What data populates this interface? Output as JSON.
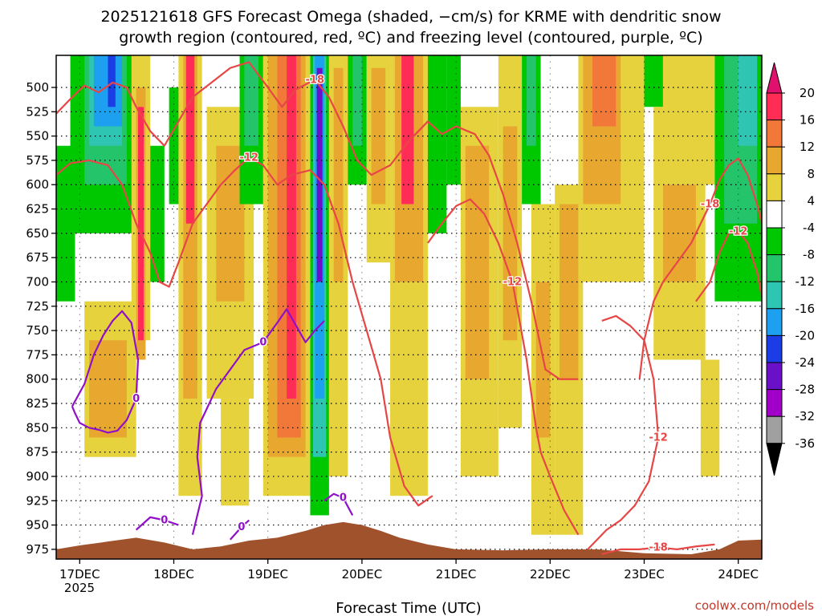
{
  "chart_data": {
    "type": "heatmap",
    "title_line1": "2025121618 GFS Forecast Omega (shaded, −cm/s) for KRME with dendritic snow",
    "title_line2": "growth region (contoured, red, ºC) and freezing level (contoured, purple, ºC)",
    "xlabel": "Forecast Time (UTC)",
    "x_ticks": [
      "17DEC",
      "18DEC",
      "19DEC",
      "20DEC",
      "21DEC",
      "22DEC",
      "23DEC",
      "24DEC"
    ],
    "x_year": "2025",
    "xlim_days": [
      16.75,
      24.25
    ],
    "y_ticks": [
      500,
      525,
      550,
      575,
      600,
      625,
      650,
      675,
      700,
      725,
      750,
      775,
      800,
      825,
      850,
      875,
      900,
      925,
      950,
      975
    ],
    "ylim": [
      467,
      985
    ],
    "colorbar_labels": [
      "20",
      "16",
      "12",
      "8",
      "4",
      "-4",
      "-8",
      "-12",
      "-16",
      "-20",
      "-24",
      "-28",
      "-32",
      "-36"
    ],
    "colorbar_colors": [
      "#ff2d55",
      "#f2783a",
      "#e8a830",
      "#e6d23c",
      "#ffffff",
      "#00c800",
      "#24c46a",
      "#2ec5b2",
      "#1ea0f0",
      "#1c3ce6",
      "#6a10c8",
      "#a000c8",
      "#a0a0a0",
      "#000000"
    ],
    "colorbar_top_color": "#e0106e",
    "omega_bands": [
      {
        "range": "4 to 8",
        "color": "#e6d23c"
      },
      {
        "range": "8 to 12",
        "color": "#e8a830"
      },
      {
        "range": "12 to 16",
        "color": "#f2783a"
      },
      {
        "range": "16 to 20",
        "color": "#ff2d55"
      },
      {
        "range": "-4 to -8",
        "color": "#00c800"
      },
      {
        "range": "-8 to -12",
        "color": "#24c46a"
      },
      {
        "range": "-12 to -16",
        "color": "#2ec5b2"
      },
      {
        "range": "-16 to -20",
        "color": "#1ea0f0"
      },
      {
        "range": "-20 to -24",
        "color": "#1c3ce6"
      },
      {
        "range": "-24 to -28",
        "color": "#6a10c8"
      }
    ],
    "dgz_contours": [
      {
        "value": -18,
        "label": "-18",
        "color": "#e64646",
        "points": [
          [
            16.75,
            527
          ],
          [
            16.9,
            512
          ],
          [
            17.05,
            498
          ],
          [
            17.2,
            505
          ],
          [
            17.35,
            495
          ],
          [
            17.5,
            500
          ],
          [
            17.6,
            520
          ],
          [
            17.75,
            545
          ],
          [
            17.9,
            560
          ],
          [
            18.05,
            535
          ],
          [
            18.2,
            510
          ],
          [
            18.4,
            495
          ],
          [
            18.6,
            480
          ],
          [
            18.8,
            474
          ],
          [
            19.0,
            500
          ],
          [
            19.15,
            520
          ],
          [
            19.3,
            502
          ],
          [
            19.5,
            492
          ],
          [
            19.65,
            510
          ],
          [
            19.8,
            540
          ],
          [
            19.95,
            575
          ],
          [
            20.1,
            590
          ],
          [
            20.3,
            580
          ],
          [
            20.5,
            555
          ],
          [
            20.7,
            535
          ],
          [
            20.85,
            548
          ],
          [
            21.0,
            540
          ],
          [
            21.2,
            548
          ],
          [
            21.35,
            570
          ],
          [
            21.5,
            610
          ],
          [
            21.65,
            660
          ],
          [
            21.8,
            720
          ],
          [
            21.95,
            790
          ],
          [
            22.1,
            800
          ],
          [
            22.3,
            800
          ]
        ]
      },
      {
        "value": -12,
        "label": "-12",
        "color": "#e64646",
        "points": [
          [
            16.75,
            590
          ],
          [
            16.9,
            578
          ],
          [
            17.1,
            575
          ],
          [
            17.3,
            580
          ],
          [
            17.45,
            600
          ],
          [
            17.6,
            640
          ],
          [
            17.75,
            670
          ],
          [
            17.85,
            700
          ],
          [
            17.95,
            705
          ],
          [
            18.05,
            680
          ],
          [
            18.2,
            640
          ],
          [
            18.35,
            620
          ],
          [
            18.5,
            600
          ],
          [
            18.65,
            585
          ],
          [
            18.8,
            572
          ],
          [
            18.95,
            580
          ],
          [
            19.1,
            600
          ],
          [
            19.25,
            590
          ],
          [
            19.45,
            585
          ],
          [
            19.6,
            600
          ],
          [
            19.75,
            640
          ],
          [
            19.9,
            700
          ],
          [
            20.05,
            750
          ],
          [
            20.2,
            800
          ],
          [
            20.3,
            860
          ],
          [
            20.45,
            910
          ],
          [
            20.6,
            930
          ],
          [
            20.75,
            920
          ]
        ]
      },
      {
        "value": -12,
        "label": "-12",
        "color": "#e64646",
        "points": [
          [
            20.7,
            660
          ],
          [
            20.85,
            640
          ],
          [
            21.0,
            622
          ],
          [
            21.15,
            615
          ],
          [
            21.3,
            630
          ],
          [
            21.45,
            660
          ],
          [
            21.6,
            700
          ],
          [
            21.75,
            780
          ],
          [
            21.85,
            850
          ],
          [
            21.9,
            875
          ],
          [
            22.0,
            900
          ],
          [
            22.15,
            935
          ],
          [
            22.3,
            960
          ]
        ]
      },
      {
        "value": -12,
        "label": "-12",
        "color": "#e64646",
        "points": [
          [
            22.4,
            975
          ],
          [
            22.6,
            955
          ],
          [
            22.75,
            945
          ],
          [
            22.9,
            930
          ],
          [
            23.05,
            905
          ],
          [
            23.15,
            860
          ],
          [
            23.1,
            800
          ],
          [
            23.0,
            760
          ],
          [
            22.85,
            745
          ],
          [
            22.7,
            735
          ],
          [
            22.55,
            740
          ]
        ]
      },
      {
        "value": -18,
        "label": "-18",
        "color": "#e64646",
        "points": [
          [
            22.55,
            980
          ],
          [
            22.75,
            975
          ],
          [
            22.95,
            975
          ],
          [
            23.15,
            973
          ],
          [
            23.35,
            975
          ],
          [
            23.55,
            972
          ],
          [
            23.75,
            970
          ]
        ]
      },
      {
        "value": -18,
        "label": "-18",
        "color": "#e64646",
        "points": [
          [
            22.95,
            800
          ],
          [
            23.0,
            760
          ],
          [
            23.1,
            720
          ],
          [
            23.2,
            700
          ],
          [
            23.35,
            680
          ],
          [
            23.5,
            660
          ],
          [
            23.6,
            640
          ],
          [
            23.7,
            620
          ],
          [
            23.8,
            595
          ],
          [
            23.9,
            580
          ],
          [
            24.0,
            573
          ],
          [
            24.1,
            590
          ],
          [
            24.2,
            620
          ],
          [
            24.25,
            640
          ]
        ]
      },
      {
        "value": -12,
        "label": "-12",
        "color": "#e64646",
        "points": [
          [
            23.55,
            720
          ],
          [
            23.7,
            700
          ],
          [
            23.8,
            670
          ],
          [
            23.9,
            650
          ],
          [
            24.0,
            648
          ],
          [
            24.1,
            660
          ],
          [
            24.2,
            690
          ],
          [
            24.25,
            715
          ]
        ]
      }
    ],
    "freezing_contours": [
      {
        "value": 0,
        "label": "0",
        "color": "#9010c8",
        "points": [
          [
            16.92,
            828
          ],
          [
            17.05,
            805
          ],
          [
            17.15,
            775
          ],
          [
            17.25,
            755
          ],
          [
            17.35,
            740
          ],
          [
            17.45,
            730
          ],
          [
            17.55,
            742
          ],
          [
            17.62,
            780
          ],
          [
            17.6,
            820
          ],
          [
            17.5,
            842
          ],
          [
            17.4,
            853
          ],
          [
            17.3,
            855
          ],
          [
            17.2,
            852
          ],
          [
            17.1,
            850
          ],
          [
            17.0,
            845
          ],
          [
            16.95,
            835
          ],
          [
            16.92,
            828
          ]
        ]
      },
      {
        "value": 0,
        "label": "0",
        "color": "#9010c8",
        "points": [
          [
            18.2,
            960
          ],
          [
            18.3,
            920
          ],
          [
            18.25,
            880
          ],
          [
            18.28,
            845
          ],
          [
            18.45,
            810
          ],
          [
            18.6,
            790
          ],
          [
            18.75,
            770
          ],
          [
            18.95,
            762
          ],
          [
            19.1,
            742
          ],
          [
            19.2,
            728
          ],
          [
            19.3,
            745
          ],
          [
            19.4,
            762
          ],
          [
            19.5,
            750
          ],
          [
            19.6,
            740
          ]
        ]
      },
      {
        "value": 0,
        "label": "0",
        "color": "#9010c8",
        "points": [
          [
            17.6,
            955
          ],
          [
            17.75,
            942
          ],
          [
            17.9,
            945
          ],
          [
            18.05,
            950
          ]
        ]
      },
      {
        "value": 0,
        "label": "0",
        "color": "#9010c8",
        "points": [
          [
            18.6,
            965
          ],
          [
            18.72,
            952
          ],
          [
            18.8,
            945
          ]
        ]
      },
      {
        "value": 0,
        "label": "0",
        "color": "#9010c8",
        "points": [
          [
            19.6,
            925
          ],
          [
            19.7,
            918
          ],
          [
            19.8,
            922
          ],
          [
            19.9,
            940
          ]
        ]
      }
    ],
    "terrain": {
      "color": "#a0522d",
      "points": [
        [
          16.75,
          975
        ],
        [
          17.0,
          971
        ],
        [
          17.3,
          967
        ],
        [
          17.6,
          963
        ],
        [
          17.9,
          968
        ],
        [
          18.2,
          975
        ],
        [
          18.5,
          972
        ],
        [
          18.8,
          966
        ],
        [
          19.1,
          963
        ],
        [
          19.4,
          956
        ],
        [
          19.6,
          950
        ],
        [
          19.8,
          947
        ],
        [
          20.0,
          950
        ],
        [
          20.2,
          956
        ],
        [
          20.4,
          963
        ],
        [
          20.7,
          970
        ],
        [
          21.0,
          975
        ],
        [
          21.5,
          976
        ],
        [
          22.0,
          975
        ],
        [
          22.5,
          975
        ],
        [
          23.0,
          979
        ],
        [
          23.5,
          980
        ],
        [
          23.8,
          975
        ],
        [
          24.0,
          966
        ],
        [
          24.25,
          965
        ]
      ]
    }
  },
  "credit": "coolwx.com/models"
}
